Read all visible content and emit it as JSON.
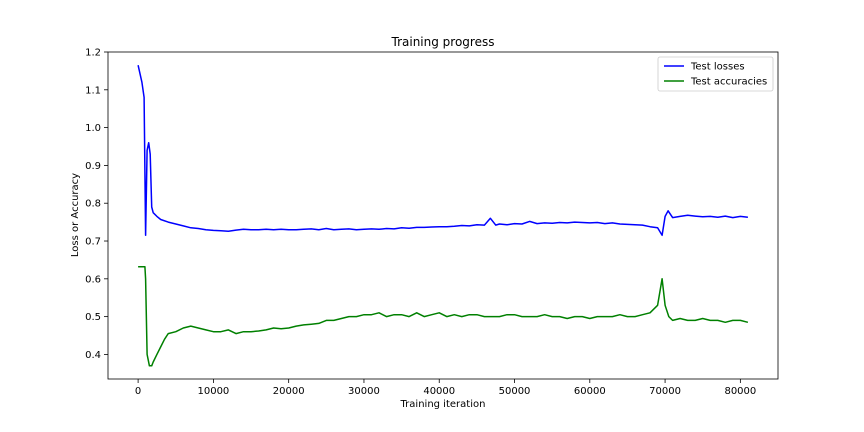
{
  "chart_data": {
    "type": "line",
    "title": "Training progress",
    "xlabel": "Training iteration",
    "ylabel": "Loss or Accuracy",
    "xlim": [
      -4000,
      85000
    ],
    "ylim": [
      0.335,
      1.2
    ],
    "xticks": [
      0,
      10000,
      20000,
      30000,
      40000,
      50000,
      60000,
      70000,
      80000
    ],
    "yticks": [
      0.4,
      0.5,
      0.6,
      0.7,
      0.8,
      0.9,
      1.0,
      1.1,
      1.2
    ],
    "xtick_labels": [
      "0",
      "10000",
      "20000",
      "30000",
      "40000",
      "50000",
      "60000",
      "70000",
      "80000"
    ],
    "ytick_labels": [
      "0.4",
      "0.5",
      "0.6",
      "0.7",
      "0.8",
      "0.9",
      "1.0",
      "1.1",
      "1.2"
    ],
    "grid": false,
    "legend_position": "top-right",
    "series": [
      {
        "name": "Test losses",
        "color": "#0000ff",
        "x": [
          0,
          500,
          800,
          1000,
          1200,
          1400,
          1600,
          1800,
          2000,
          2500,
          3000,
          4000,
          5000,
          6000,
          7000,
          8000,
          9000,
          10000,
          11000,
          12000,
          13000,
          14000,
          15000,
          16000,
          17000,
          18000,
          19000,
          20000,
          21000,
          22000,
          23000,
          24000,
          25000,
          26000,
          27000,
          28000,
          29000,
          30000,
          31000,
          32000,
          33000,
          34000,
          35000,
          36000,
          37000,
          38000,
          39000,
          40000,
          41000,
          42000,
          43000,
          44000,
          45000,
          46000,
          46800,
          47500,
          48000,
          49000,
          50000,
          51000,
          52000,
          53000,
          54000,
          55000,
          56000,
          57000,
          58000,
          59000,
          60000,
          61000,
          62000,
          63000,
          64000,
          65000,
          66000,
          67000,
          68000,
          69000,
          69600,
          70000,
          70400,
          71000,
          72000,
          73000,
          74000,
          75000,
          76000,
          77000,
          78000,
          79000,
          80000,
          81000
        ],
        "values": [
          1.165,
          1.12,
          1.08,
          0.715,
          0.94,
          0.96,
          0.93,
          0.79,
          0.775,
          0.765,
          0.757,
          0.75,
          0.745,
          0.74,
          0.735,
          0.733,
          0.73,
          0.728,
          0.727,
          0.726,
          0.729,
          0.731,
          0.73,
          0.73,
          0.731,
          0.73,
          0.731,
          0.73,
          0.73,
          0.731,
          0.732,
          0.73,
          0.733,
          0.73,
          0.731,
          0.732,
          0.73,
          0.731,
          0.732,
          0.731,
          0.733,
          0.732,
          0.735,
          0.734,
          0.736,
          0.736,
          0.737,
          0.738,
          0.738,
          0.739,
          0.741,
          0.74,
          0.743,
          0.742,
          0.76,
          0.742,
          0.745,
          0.743,
          0.746,
          0.745,
          0.752,
          0.746,
          0.748,
          0.747,
          0.749,
          0.748,
          0.75,
          0.749,
          0.748,
          0.749,
          0.746,
          0.748,
          0.745,
          0.744,
          0.743,
          0.742,
          0.738,
          0.735,
          0.715,
          0.765,
          0.78,
          0.762,
          0.765,
          0.768,
          0.766,
          0.764,
          0.765,
          0.763,
          0.766,
          0.762,
          0.765,
          0.763
        ]
      },
      {
        "name": "Test accuracies",
        "color": "#008000",
        "x": [
          0,
          500,
          900,
          1000,
          1200,
          1500,
          1800,
          2000,
          2500,
          3000,
          3500,
          4000,
          5000,
          6000,
          7000,
          8000,
          9000,
          10000,
          11000,
          12000,
          13000,
          14000,
          15000,
          16000,
          17000,
          18000,
          19000,
          20000,
          21000,
          22000,
          23000,
          24000,
          25000,
          26000,
          27000,
          28000,
          29000,
          30000,
          31000,
          32000,
          33000,
          34000,
          35000,
          36000,
          37000,
          38000,
          39000,
          40000,
          41000,
          42000,
          43000,
          44000,
          45000,
          46000,
          47000,
          48000,
          49000,
          50000,
          51000,
          52000,
          53000,
          54000,
          55000,
          56000,
          57000,
          58000,
          59000,
          60000,
          61000,
          62000,
          63000,
          64000,
          65000,
          66000,
          67000,
          68000,
          69000,
          69600,
          70000,
          70500,
          71000,
          72000,
          73000,
          74000,
          75000,
          76000,
          77000,
          78000,
          79000,
          80000,
          81000
        ],
        "values": [
          0.632,
          0.632,
          0.632,
          0.6,
          0.4,
          0.37,
          0.37,
          0.38,
          0.4,
          0.42,
          0.44,
          0.455,
          0.46,
          0.47,
          0.475,
          0.47,
          0.465,
          0.46,
          0.46,
          0.465,
          0.455,
          0.46,
          0.46,
          0.462,
          0.465,
          0.47,
          0.468,
          0.47,
          0.475,
          0.478,
          0.48,
          0.482,
          0.49,
          0.49,
          0.495,
          0.5,
          0.5,
          0.505,
          0.505,
          0.51,
          0.5,
          0.505,
          0.505,
          0.5,
          0.51,
          0.5,
          0.505,
          0.51,
          0.5,
          0.505,
          0.5,
          0.505,
          0.505,
          0.5,
          0.5,
          0.5,
          0.505,
          0.505,
          0.5,
          0.5,
          0.5,
          0.505,
          0.5,
          0.5,
          0.495,
          0.5,
          0.5,
          0.495,
          0.5,
          0.5,
          0.5,
          0.505,
          0.5,
          0.5,
          0.505,
          0.51,
          0.53,
          0.6,
          0.53,
          0.5,
          0.49,
          0.495,
          0.49,
          0.49,
          0.495,
          0.49,
          0.49,
          0.485,
          0.49,
          0.49,
          0.485
        ]
      }
    ]
  }
}
